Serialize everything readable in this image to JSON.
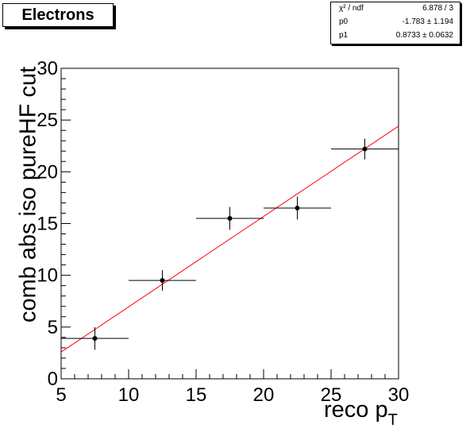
{
  "chart_data": {
    "type": "scatter",
    "title": "Electrons",
    "xlabel": "reco p",
    "xlabel_sub": "T",
    "ylabel": "comb abs iso pureHF cut",
    "xlim": [
      5,
      30
    ],
    "ylim": [
      0,
      30
    ],
    "x_ticks": [
      5,
      10,
      15,
      20,
      25,
      30
    ],
    "y_ticks": [
      0,
      5,
      10,
      15,
      20,
      25,
      30
    ],
    "grid": false,
    "points": [
      {
        "x": 7.5,
        "xerr": 2.5,
        "y": 3.9,
        "yerr": 1.1
      },
      {
        "x": 12.5,
        "xerr": 2.5,
        "y": 9.5,
        "yerr": 1.0
      },
      {
        "x": 17.5,
        "xerr": 2.5,
        "y": 15.5,
        "yerr": 1.1
      },
      {
        "x": 22.5,
        "xerr": 2.5,
        "y": 16.5,
        "yerr": 1.1
      },
      {
        "x": 27.5,
        "xerr": 2.5,
        "y": 22.2,
        "yerr": 1.0
      }
    ],
    "fit": {
      "p0": -1.783,
      "p1": 0.8733,
      "color": "#ff0000"
    },
    "stats": [
      {
        "key": "χ² / ndf",
        "value": "6.878 / 3"
      },
      {
        "key": "p0",
        "value": "-1.783 ± 1.194"
      },
      {
        "key": "p1",
        "value": "0.8733 ± 0.0632"
      }
    ]
  }
}
